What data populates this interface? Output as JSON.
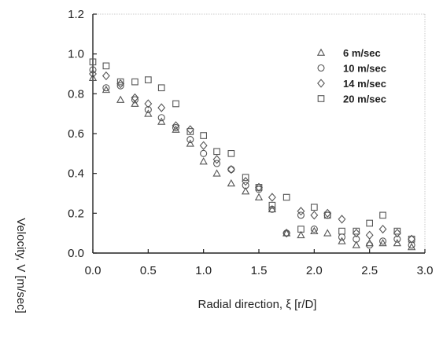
{
  "chart_data": {
    "type": "scatter",
    "xlabel": "Radial direction, ξ [r/D]",
    "ylabel": "Velocity, V [m/sec]",
    "xlim": [
      0,
      3.0
    ],
    "ylim": [
      0,
      1.2
    ],
    "xticks": [
      "0.0",
      "0.5",
      "1.0",
      "1.5",
      "2.0",
      "2.5",
      "3.0"
    ],
    "yticks": [
      "0.0",
      "0.2",
      "0.4",
      "0.6",
      "0.8",
      "1.0",
      "1.2"
    ],
    "grid": false,
    "legend_position": "top-right",
    "series": [
      {
        "name": "6 m/sec",
        "marker": "triangle",
        "points": [
          [
            0.0,
            0.88
          ],
          [
            0.12,
            0.82
          ],
          [
            0.25,
            0.77
          ],
          [
            0.38,
            0.75
          ],
          [
            0.5,
            0.7
          ],
          [
            0.62,
            0.66
          ],
          [
            0.75,
            0.62
          ],
          [
            0.88,
            0.55
          ],
          [
            1.0,
            0.46
          ],
          [
            1.12,
            0.4
          ],
          [
            1.25,
            0.35
          ],
          [
            1.38,
            0.31
          ],
          [
            1.5,
            0.28
          ],
          [
            1.62,
            0.22
          ],
          [
            1.75,
            0.1
          ],
          [
            1.88,
            0.09
          ],
          [
            2.0,
            0.11
          ],
          [
            2.12,
            0.1
          ],
          [
            2.25,
            0.06
          ],
          [
            2.38,
            0.04
          ],
          [
            2.5,
            0.05
          ],
          [
            2.62,
            0.05
          ],
          [
            2.75,
            0.05
          ],
          [
            2.88,
            0.03
          ]
        ]
      },
      {
        "name": "10 m/sec",
        "marker": "circle",
        "points": [
          [
            0.0,
            0.92
          ],
          [
            0.12,
            0.83
          ],
          [
            0.25,
            0.84
          ],
          [
            0.38,
            0.77
          ],
          [
            0.5,
            0.72
          ],
          [
            0.62,
            0.68
          ],
          [
            0.75,
            0.63
          ],
          [
            0.88,
            0.57
          ],
          [
            1.0,
            0.5
          ],
          [
            1.12,
            0.45
          ],
          [
            1.25,
            0.42
          ],
          [
            1.38,
            0.34
          ],
          [
            1.5,
            0.32
          ],
          [
            1.62,
            0.22
          ],
          [
            1.75,
            0.1
          ],
          [
            1.88,
            0.19
          ],
          [
            2.0,
            0.12
          ],
          [
            2.12,
            0.19
          ],
          [
            2.25,
            0.08
          ],
          [
            2.38,
            0.07
          ],
          [
            2.5,
            0.04
          ],
          [
            2.62,
            0.06
          ],
          [
            2.75,
            0.07
          ],
          [
            2.88,
            0.04
          ]
        ]
      },
      {
        "name": "14 m/sec",
        "marker": "diamond",
        "points": [
          [
            0.0,
            0.9
          ],
          [
            0.12,
            0.89
          ],
          [
            0.25,
            0.85
          ],
          [
            0.38,
            0.78
          ],
          [
            0.5,
            0.75
          ],
          [
            0.62,
            0.73
          ],
          [
            0.75,
            0.64
          ],
          [
            0.88,
            0.62
          ],
          [
            1.0,
            0.54
          ],
          [
            1.12,
            0.47
          ],
          [
            1.25,
            0.42
          ],
          [
            1.38,
            0.36
          ],
          [
            1.5,
            0.33
          ],
          [
            1.62,
            0.28
          ],
          [
            1.75,
            0.1
          ],
          [
            1.88,
            0.21
          ],
          [
            2.0,
            0.19
          ],
          [
            2.12,
            0.2
          ],
          [
            2.25,
            0.17
          ],
          [
            2.38,
            0.1
          ],
          [
            2.5,
            0.09
          ],
          [
            2.62,
            0.12
          ],
          [
            2.75,
            0.1
          ],
          [
            2.88,
            0.07
          ]
        ]
      },
      {
        "name": "20 m/sec",
        "marker": "square",
        "points": [
          [
            0.0,
            0.96
          ],
          [
            0.12,
            0.94
          ],
          [
            0.25,
            0.86
          ],
          [
            0.38,
            0.86
          ],
          [
            0.5,
            0.87
          ],
          [
            0.62,
            0.83
          ],
          [
            0.75,
            0.75
          ],
          [
            0.88,
            0.61
          ],
          [
            1.0,
            0.59
          ],
          [
            1.12,
            0.51
          ],
          [
            1.25,
            0.5
          ],
          [
            1.38,
            0.38
          ],
          [
            1.5,
            0.33
          ],
          [
            1.62,
            0.24
          ],
          [
            1.75,
            0.28
          ],
          [
            1.88,
            0.12
          ],
          [
            2.0,
            0.23
          ],
          [
            2.12,
            0.19
          ],
          [
            2.25,
            0.11
          ],
          [
            2.38,
            0.11
          ],
          [
            2.5,
            0.15
          ],
          [
            2.62,
            0.19
          ],
          [
            2.75,
            0.11
          ],
          [
            2.88,
            0.07
          ]
        ]
      }
    ]
  }
}
